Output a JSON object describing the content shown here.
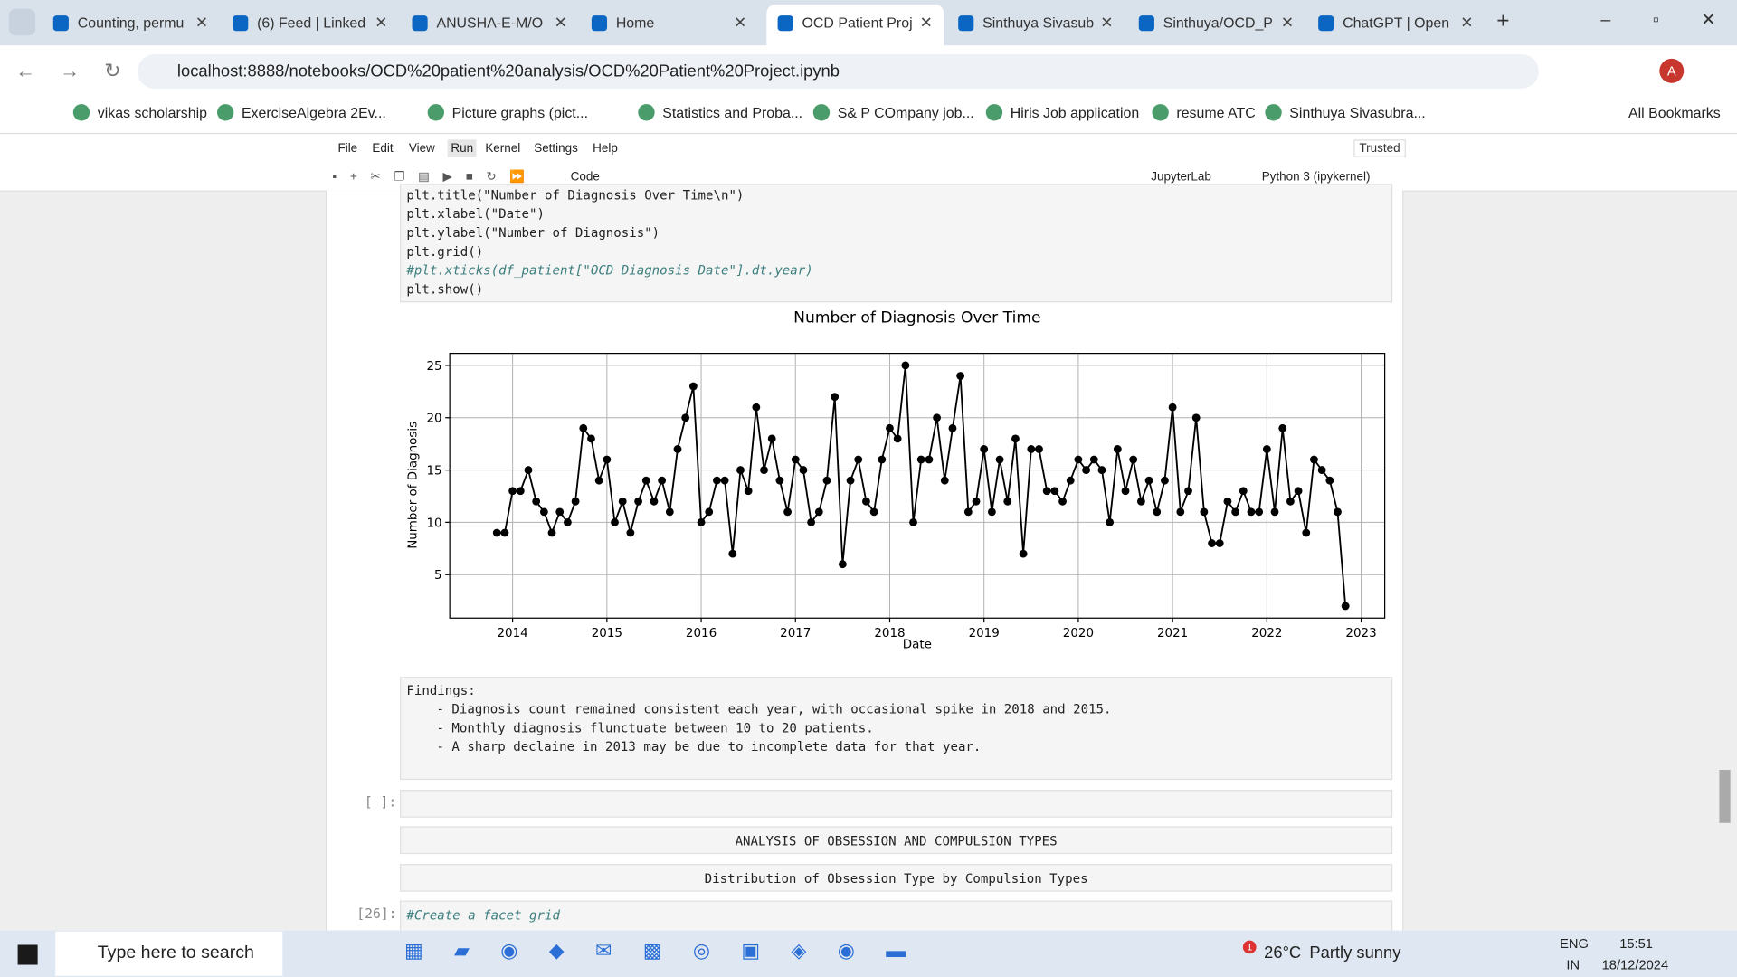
{
  "browser": {
    "tabs": [
      "Counting, permu",
      "(6) Feed | Linked",
      "ANUSHA-E-M/O",
      "Home",
      "OCD Patient Proj",
      "Sinthuya Sivasub",
      "Sinthuya/OCD_P",
      "ChatGPT | Open"
    ],
    "url": "localhost:8888/notebooks/OCD%20patient%20analysis/OCD%20Patient%20Project.ipynb",
    "bookmarks": [
      "vikas scholarship",
      "ExerciseAlgebra 2Ev...",
      "Picture graphs (pict...",
      "Statistics and Proba...",
      "S& P COmpany job...",
      "Hiris Job application",
      "resume ATC",
      "Sinthuya Sivasubra..."
    ],
    "all_bookmarks": "All Bookmarks",
    "profile": "A"
  },
  "jupyter": {
    "menu": [
      "File",
      "Edit",
      "View",
      "Run",
      "Kernel",
      "Settings",
      "Help"
    ],
    "trusted": "Trusted",
    "cell_type": "Code",
    "jupyterlab": "JupyterLab",
    "kernel": "Python 3 (ipykernel)",
    "code_lines": [
      "plt.title(\"Number of Diagnosis Over Time\\n\")",
      "plt.xlabel(\"Date\")",
      "plt.ylabel(\"Number of Diagnosis\")",
      "plt.grid()",
      "#plt.xticks(df_patient[\"OCD Diagnosis Date\"].dt.year)",
      "plt.show()"
    ],
    "findings": [
      "Findings:",
      "- Diagnosis count remained consistent each year, with occasional spike in 2018 and 2015.",
      "- Monthly diagnosis flunctuate between 10 to 20 patients.",
      "- A sharp declaine in 2013 may be due to incomplete data for that year."
    ],
    "empty_prompt": "[ ]:",
    "headings": [
      "ANALYSIS OF OBSESSION AND COMPULSION TYPES",
      "Distribution of Obsession Type by Compulsion Types"
    ],
    "next_prompt": "[26]:",
    "next_code": "#Create a facet grid"
  },
  "chart_data": {
    "type": "line",
    "title": "Number of Diagnosis Over Time",
    "x_label": "Date",
    "y_label": "Number of Diagnosis",
    "color": "#000000",
    "grid": true,
    "x": [
      "2013-11",
      "2013-12",
      "2014-01",
      "2014-02",
      "2014-03",
      "2014-04",
      "2014-05",
      "2014-06",
      "2014-07",
      "2014-08",
      "2014-09",
      "2014-10",
      "2014-11",
      "2014-12",
      "2015-01",
      "2015-02",
      "2015-03",
      "2015-04",
      "2015-05",
      "2015-06",
      "2015-07",
      "2015-08",
      "2015-09",
      "2015-10",
      "2015-11",
      "2015-12",
      "2016-01",
      "2016-02",
      "2016-03",
      "2016-04",
      "2016-05",
      "2016-06",
      "2016-07",
      "2016-08",
      "2016-09",
      "2016-10",
      "2016-11",
      "2016-12",
      "2017-01",
      "2017-02",
      "2017-03",
      "2017-04",
      "2017-05",
      "2017-06",
      "2017-07",
      "2017-08",
      "2017-09",
      "2017-10",
      "2017-11",
      "2017-12",
      "2018-01",
      "2018-02",
      "2018-03",
      "2018-04",
      "2018-05",
      "2018-06",
      "2018-07",
      "2018-08",
      "2018-09",
      "2018-10",
      "2018-11",
      "2018-12",
      "2019-01",
      "2019-02",
      "2019-03",
      "2019-04",
      "2019-05",
      "2019-06",
      "2019-07",
      "2019-08",
      "2019-09",
      "2019-10",
      "2019-11",
      "2019-12",
      "2020-01",
      "2020-02",
      "2020-03",
      "2020-04",
      "2020-05",
      "2020-06",
      "2020-07",
      "2020-08",
      "2020-09",
      "2020-10",
      "2020-11",
      "2020-12",
      "2021-01",
      "2021-02",
      "2021-03",
      "2021-04",
      "2021-05",
      "2021-06",
      "2021-07",
      "2021-08",
      "2021-09",
      "2021-10",
      "2021-11",
      "2021-12",
      "2022-01",
      "2022-02",
      "2022-03",
      "2022-04",
      "2022-05",
      "2022-06",
      "2022-07",
      "2022-08",
      "2022-09",
      "2022-10",
      "2022-11"
    ],
    "values": [
      9,
      9,
      13,
      13,
      15,
      12,
      11,
      9,
      11,
      10,
      12,
      19,
      18,
      14,
      16,
      10,
      12,
      9,
      12,
      14,
      12,
      14,
      11,
      17,
      20,
      23,
      10,
      11,
      14,
      14,
      7,
      15,
      13,
      21,
      15,
      18,
      14,
      11,
      16,
      15,
      10,
      11,
      14,
      22,
      6,
      14,
      16,
      12,
      11,
      16,
      19,
      18,
      25,
      10,
      16,
      16,
      20,
      14,
      19,
      24,
      11,
      12,
      17,
      11,
      16,
      12,
      18,
      7,
      17,
      17,
      13,
      13,
      12,
      14,
      16,
      15,
      16,
      15,
      10,
      17,
      13,
      16,
      12,
      14,
      11,
      14,
      21,
      11,
      13,
      20,
      11,
      8,
      8,
      12,
      11,
      13,
      11,
      11,
      17,
      11,
      19,
      12,
      13,
      9,
      16,
      15,
      14,
      11,
      2
    ],
    "xlim": [
      "2013-05",
      "2023-04"
    ],
    "xticks": [
      2014,
      2015,
      2016,
      2017,
      2018,
      2019,
      2020,
      2021,
      2022,
      2023
    ],
    "ylim": [
      0.85,
      26.15
    ],
    "yticks": [
      5,
      10,
      15,
      20,
      25
    ]
  },
  "taskbar": {
    "search": "Type here to search",
    "weather_badge": "1",
    "temperature": "26°C",
    "weather": "Partly sunny",
    "lang": "ENG",
    "region": "IN",
    "time": "15:51",
    "date": "18/12/2024"
  }
}
